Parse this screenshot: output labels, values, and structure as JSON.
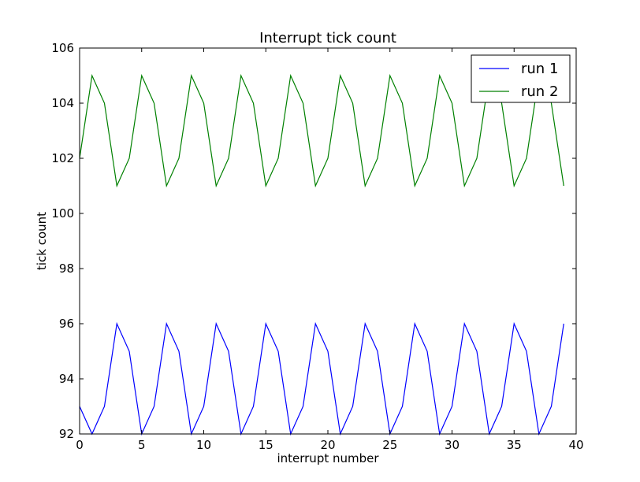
{
  "chart_data": {
    "type": "line",
    "title": "Interrupt tick count",
    "xlabel": "interrupt number",
    "ylabel": "tick count",
    "xlim": [
      0,
      40
    ],
    "ylim": [
      92,
      106
    ],
    "xticks": [
      0,
      5,
      10,
      15,
      20,
      25,
      30,
      35,
      40
    ],
    "yticks": [
      92,
      94,
      96,
      98,
      100,
      102,
      104,
      106
    ],
    "grid": false,
    "legend_position": "top-right",
    "series": [
      {
        "name": "run 1",
        "color": "#0000ff",
        "x": [
          0,
          1,
          2,
          3,
          4,
          5,
          6,
          7,
          8,
          9,
          10,
          11,
          12,
          13,
          14,
          15,
          16,
          17,
          18,
          19,
          20,
          21,
          22,
          23,
          24,
          25,
          26,
          27,
          28,
          29,
          30,
          31,
          32,
          33,
          34,
          35,
          36,
          37,
          38,
          39
        ],
        "values": [
          93,
          92,
          93,
          96,
          95,
          92,
          93,
          96,
          95,
          92,
          93,
          96,
          95,
          92,
          93,
          96,
          95,
          92,
          93,
          96,
          95,
          92,
          93,
          96,
          95,
          92,
          93,
          96,
          95,
          92,
          93,
          96,
          95,
          92,
          93,
          96,
          95,
          92,
          93,
          96
        ]
      },
      {
        "name": "run 2",
        "color": "#008000",
        "x": [
          0,
          1,
          2,
          3,
          4,
          5,
          6,
          7,
          8,
          9,
          10,
          11,
          12,
          13,
          14,
          15,
          16,
          17,
          18,
          19,
          20,
          21,
          22,
          23,
          24,
          25,
          26,
          27,
          28,
          29,
          30,
          31,
          32,
          33,
          34,
          35,
          36,
          37,
          38,
          39
        ],
        "values": [
          102,
          105,
          104,
          101,
          102,
          105,
          104,
          101,
          102,
          105,
          104,
          101,
          102,
          105,
          104,
          101,
          102,
          105,
          104,
          101,
          102,
          105,
          104,
          101,
          102,
          105,
          104,
          101,
          102,
          105,
          104,
          101,
          102,
          105,
          104,
          101,
          102,
          105,
          104,
          101
        ]
      }
    ]
  }
}
